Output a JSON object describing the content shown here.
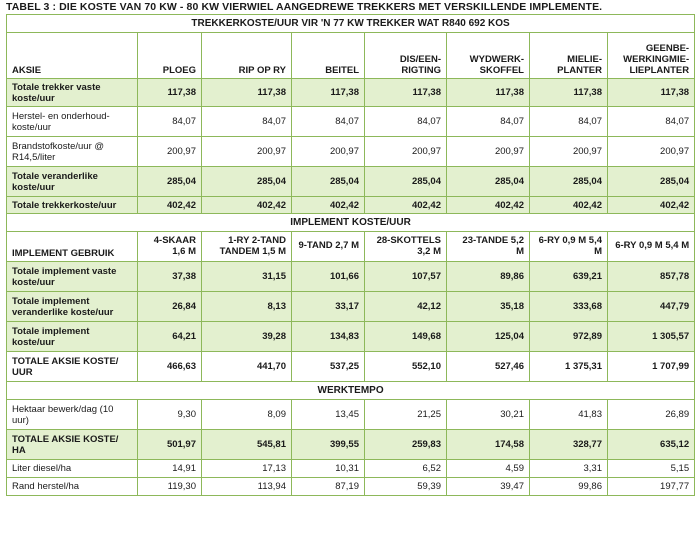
{
  "caption": "TABEL 3 : DIE KOSTE VAN 70 KW - 80 KW VIERWIEL AANGEDREWE TREKKERS MET VERSKILLENDE IMPLEMENTE.",
  "sections": {
    "tractor": "TREKKERKOSTE/UUR VIR 'N 77 KW TREKKER WAT R840 692 KOS",
    "implement": "IMPLEMENT KOSTE/UUR",
    "tempo": "WERKTEMPO"
  },
  "tractor_header": {
    "label": "AKSIE",
    "cols": [
      "PLOEG",
      "RIP OP RY",
      "BEITEL",
      "DIS/EEN-RIGTING",
      "WYDWERK-SKOFFEL",
      "MIELIE-PLANTER",
      "GEENBE-WERKINGMIE-LIEPLANTER"
    ]
  },
  "tractor_rows": [
    {
      "label": "Totale trekker vaste koste/uur",
      "values": [
        "117,38",
        "117,38",
        "117,38",
        "117,38",
        "117,38",
        "117,38",
        "117,38"
      ]
    },
    {
      "label": "Herstel- en onderhoud-koste/uur",
      "values": [
        "84,07",
        "84,07",
        "84,07",
        "84,07",
        "84,07",
        "84,07",
        "84,07"
      ]
    },
    {
      "label": "Brandstofkoste/uur @ R14,5/liter",
      "values": [
        "200,97",
        "200,97",
        "200,97",
        "200,97",
        "200,97",
        "200,97",
        "200,97"
      ]
    },
    {
      "label": "Totale veranderlike koste/uur",
      "values": [
        "285,04",
        "285,04",
        "285,04",
        "285,04",
        "285,04",
        "285,04",
        "285,04"
      ]
    },
    {
      "label": "Totale trekkerkoste/uur",
      "values": [
        "402,42",
        "402,42",
        "402,42",
        "402,42",
        "402,42",
        "402,42",
        "402,42"
      ]
    }
  ],
  "implement_header": {
    "label": "IMPLEMENT GEBRUIK",
    "cols": [
      "4-SKAAR 1,6 M",
      "1-RY 2-TAND TANDEM 1,5 M",
      "9-TAND 2,7 M",
      "28-SKOTTELS 3,2 M",
      "23-TANDE 5,2 M",
      "6-RY 0,9 M 5,4 M",
      "6-RY 0,9 M 5,4 M"
    ]
  },
  "implement_rows": [
    {
      "label": "Totale implement vaste koste/uur",
      "values": [
        "37,38",
        "31,15",
        "101,66",
        "107,57",
        "89,86",
        "639,21",
        "857,78"
      ]
    },
    {
      "label": "Totale implement veranderlike koste/uur",
      "values": [
        "26,84",
        "8,13",
        "33,17",
        "42,12",
        "35,18",
        "333,68",
        "447,79"
      ]
    },
    {
      "label": "Totale implement koste/uur",
      "values": [
        "64,21",
        "39,28",
        "134,83",
        "149,68",
        "125,04",
        "972,89",
        "1 305,57"
      ]
    },
    {
      "label": "TOTALE AKSIE KOSTE/ UUR",
      "values": [
        "466,63",
        "441,70",
        "537,25",
        "552,10",
        "527,46",
        "1 375,31",
        "1 707,99"
      ]
    }
  ],
  "tempo_rows": [
    {
      "label": "Hektaar bewerk/dag (10 uur)",
      "values": [
        "9,30",
        "8,09",
        "13,45",
        "21,25",
        "30,21",
        "41,83",
        "26,89"
      ]
    },
    {
      "label": "TOTALE AKSIE KOSTE/ HA",
      "values": [
        "501,97",
        "545,81",
        "399,55",
        "259,83",
        "174,58",
        "328,77",
        "635,12"
      ]
    },
    {
      "label": "Liter diesel/ha",
      "values": [
        "14,91",
        "17,13",
        "10,31",
        "6,52",
        "4,59",
        "3,31",
        "5,15"
      ]
    },
    {
      "label": "Rand herstel/ha",
      "values": [
        "119,30",
        "113,94",
        "87,19",
        "59,39",
        "39,47",
        "99,86",
        "197,77"
      ]
    }
  ]
}
